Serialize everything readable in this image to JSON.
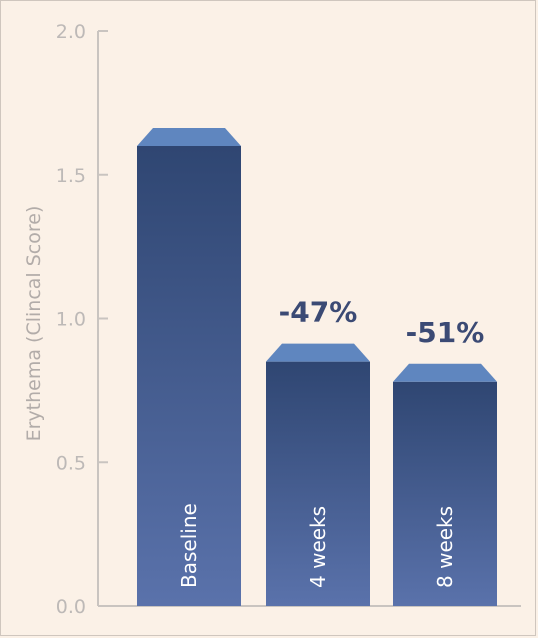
{
  "chart_data": {
    "type": "bar",
    "categories": [
      "Baseline",
      "4 weeks",
      "8 weeks"
    ],
    "values": [
      1.6,
      0.85,
      0.78
    ],
    "annotations": [
      "",
      "-47%",
      "-51%"
    ],
    "ylabel": "Erythema (Clincal Score)",
    "xlabel": "",
    "ylim": [
      0,
      2.0
    ],
    "yticks": [
      "0.0",
      "0.5",
      "1.0",
      "1.5",
      "2.0"
    ],
    "grid": false,
    "colors": {
      "bar_top": "#2f4672",
      "bar_bottom": "#5a72ab",
      "bar_cap": "#5f86bf",
      "axis": "#c9c4c0",
      "annotation": "#3b4a74",
      "background": "#fbf1e7"
    }
  }
}
